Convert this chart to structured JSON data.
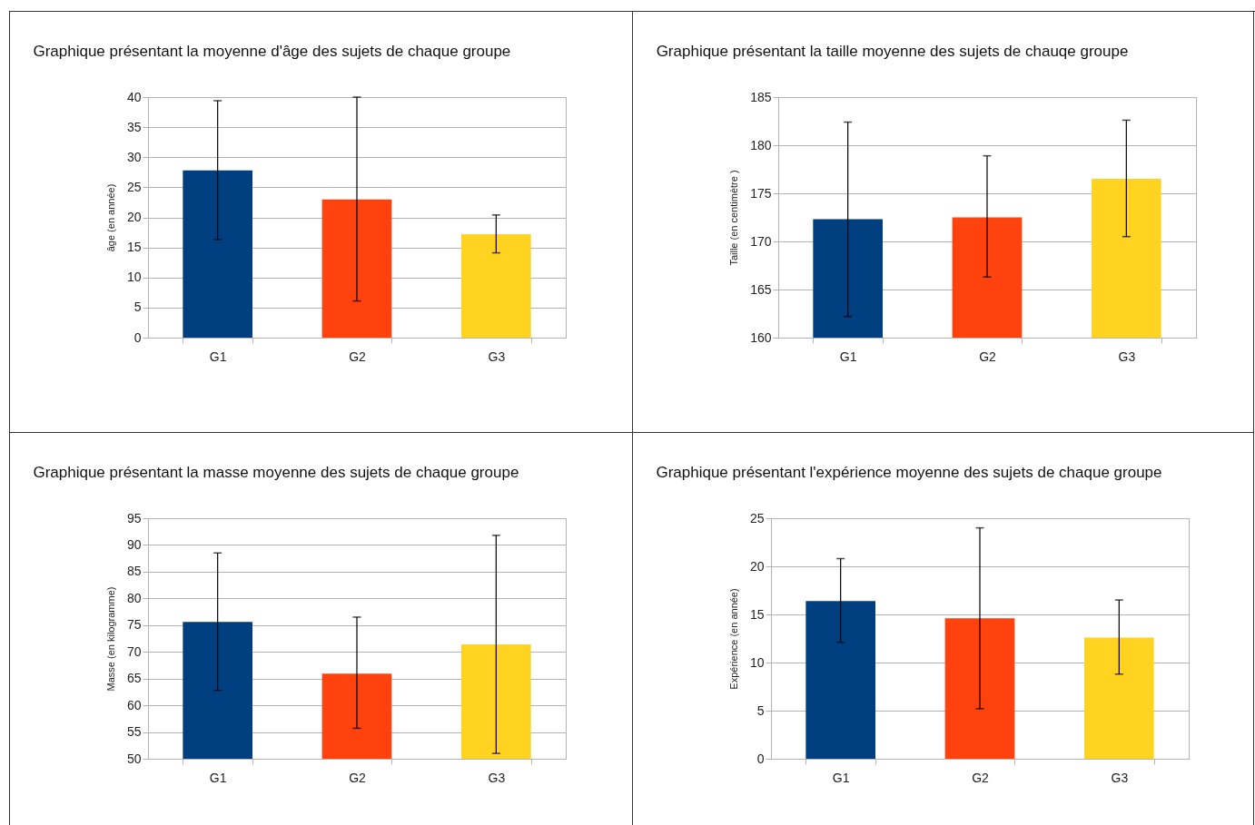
{
  "chart_data": [
    {
      "type": "bar",
      "title": "Graphique présentant la moyenne d'âge des sujets de chaque groupe",
      "ylabel": "âge (en année)",
      "categories": [
        "G1",
        "G2",
        "G3"
      ],
      "values": [
        27.8,
        23.0,
        17.2
      ],
      "colors": [
        "#003f7f",
        "#ff420e",
        "#ffd320"
      ],
      "errors": [
        [
          16.3,
          39.4
        ],
        [
          6.1,
          40
        ],
        [
          14.1,
          20.4
        ]
      ],
      "ylim": [
        0,
        40
      ],
      "yticks": [
        0,
        5,
        10,
        15,
        20,
        25,
        30,
        35,
        40
      ],
      "grid": "y"
    },
    {
      "type": "bar",
      "title": "Graphique présentant la taille moyenne des sujets de chauqe groupe",
      "ylabel": "Taille (en centimètre )",
      "categories": [
        "G1",
        "G2",
        "G3"
      ],
      "values": [
        172.3,
        172.5,
        176.5
      ],
      "colors": [
        "#003f7f",
        "#ff420e",
        "#ffd320"
      ],
      "errors": [
        [
          162.2,
          182.4
        ],
        [
          166.3,
          178.9
        ],
        [
          170.5,
          182.6
        ]
      ],
      "ylim": [
        160,
        185
      ],
      "yticks": [
        160,
        165,
        170,
        175,
        180,
        185
      ],
      "grid": "y"
    },
    {
      "type": "bar",
      "title": "Graphique présentant la masse moyenne des sujets de chaque groupe",
      "ylabel": "Masse (en kilogramme)",
      "categories": [
        "G1",
        "G2",
        "G3"
      ],
      "values": [
        75.6,
        65.9,
        71.4
      ],
      "colors": [
        "#003f7f",
        "#ff420e",
        "#ffd320"
      ],
      "errors": [
        [
          62.8,
          88.5
        ],
        [
          55.7,
          76.5
        ],
        [
          51.0,
          91.8
        ]
      ],
      "ylim": [
        50,
        95
      ],
      "yticks": [
        50,
        55,
        60,
        65,
        70,
        75,
        80,
        85,
        90,
        95
      ],
      "grid": "y"
    },
    {
      "type": "bar",
      "title": "Graphique présentant l'expérience moyenne des sujets de chaque groupe",
      "ylabel": "Expérience (en année)",
      "categories": [
        "G1",
        "G2",
        "G3"
      ],
      "values": [
        16.4,
        14.6,
        12.6
      ],
      "colors": [
        "#003f7f",
        "#ff420e",
        "#ffd320"
      ],
      "errors": [
        [
          12.1,
          20.8
        ],
        [
          5.2,
          24.0
        ],
        [
          8.8,
          16.5
        ]
      ],
      "ylim": [
        0,
        25
      ],
      "yticks": [
        0,
        5,
        10,
        15,
        20,
        25
      ],
      "grid": "y"
    }
  ]
}
